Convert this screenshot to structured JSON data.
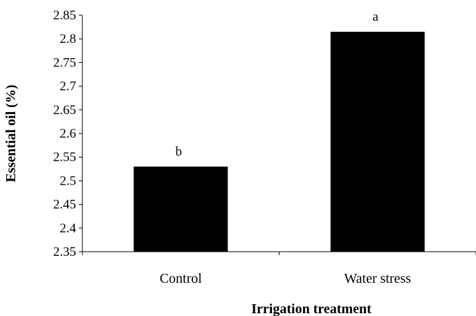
{
  "chart_data": {
    "type": "bar",
    "categories": [
      "Control",
      "Water stress"
    ],
    "values": [
      2.53,
      2.815
    ],
    "data_labels": [
      "b",
      "a"
    ],
    "xlabel": "Irrigation treatment",
    "ylabel": "Essential oil (%)",
    "ylim": [
      2.35,
      2.85
    ],
    "yticks": [
      "2.35",
      "2.4",
      "2.45",
      "2.5",
      "2.55",
      "2.6",
      "2.65",
      "2.7",
      "2.75",
      "2.8",
      "2.85"
    ],
    "grid": false,
    "legend": "none",
    "bar_color": "#000000"
  }
}
